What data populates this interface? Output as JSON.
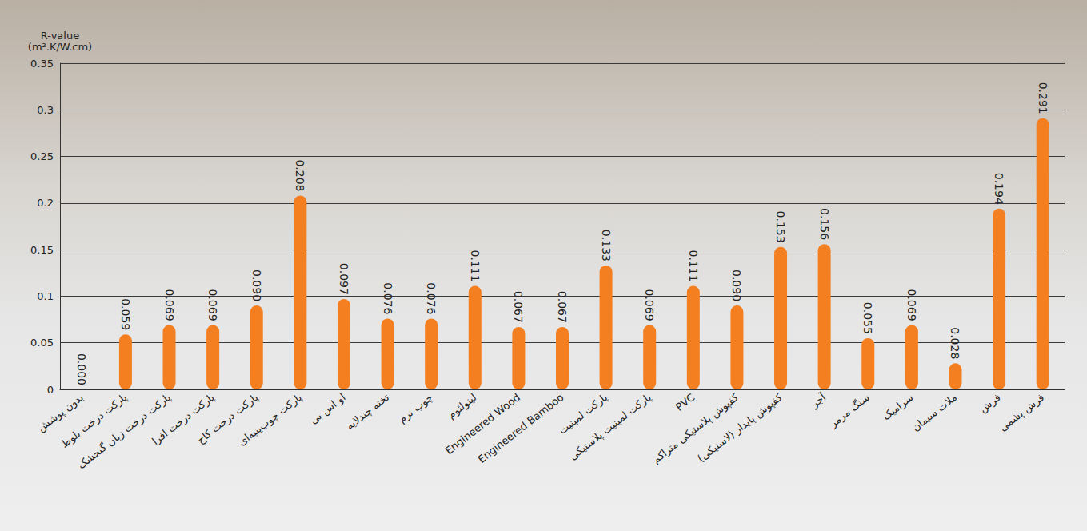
{
  "chart_data": {
    "type": "bar",
    "y_label": "R-value\n(m².K/W.cm)",
    "categories": [
      "بدون پوشش",
      "پارکت درخت بلوط",
      "پارکت درخت زبان گنجشک",
      "پارکت درخت افرا",
      "پارکت درخت کاج",
      "پارکت چوب‌پنبه‌ای",
      "او اس بی",
      "تخته چندلایه",
      "چوب نرم",
      "لینولئوم",
      "Engineered Wood",
      "Engineered Bamboo",
      "پارکت لمینیت",
      "پارکت لمینیت پلاستیکی",
      "PVC",
      "کفپوش پلاستیکی متراکم",
      "کفپوش پایدار (لاستیکی)",
      "آجر",
      "سنگ مرمر",
      "سرامیک",
      "ملات سیمان",
      "فرش",
      "فرش پشمی"
    ],
    "values": [
      0,
      0.059,
      0.069,
      0.069,
      0.09,
      0.208,
      0.097,
      0.076,
      0.076,
      0.111,
      0.067,
      0.067,
      0.133,
      0.069,
      0.111,
      0.09,
      0.153,
      0.156,
      0.055,
      0.069,
      0.028,
      0.194,
      0.291
    ],
    "value_labels": [
      "0.000",
      "0.059",
      "0.069",
      "0.069",
      "0.090",
      "0.208",
      "0.097",
      "0.076",
      "0.076",
      "0.111",
      "0.067",
      "0.067",
      "0.133",
      "0.069",
      "0.111",
      "0.090",
      "0.153",
      "0.156",
      "0.055",
      "0.069",
      "0.028",
      "0.194",
      "0.291"
    ],
    "color": "#f47f20",
    "ylim": [
      0,
      0.35
    ],
    "yticks": [
      0,
      0.05,
      0.1,
      0.15,
      0.2,
      0.25,
      0.3,
      0.35
    ],
    "grid": true,
    "data_labels": true
  }
}
